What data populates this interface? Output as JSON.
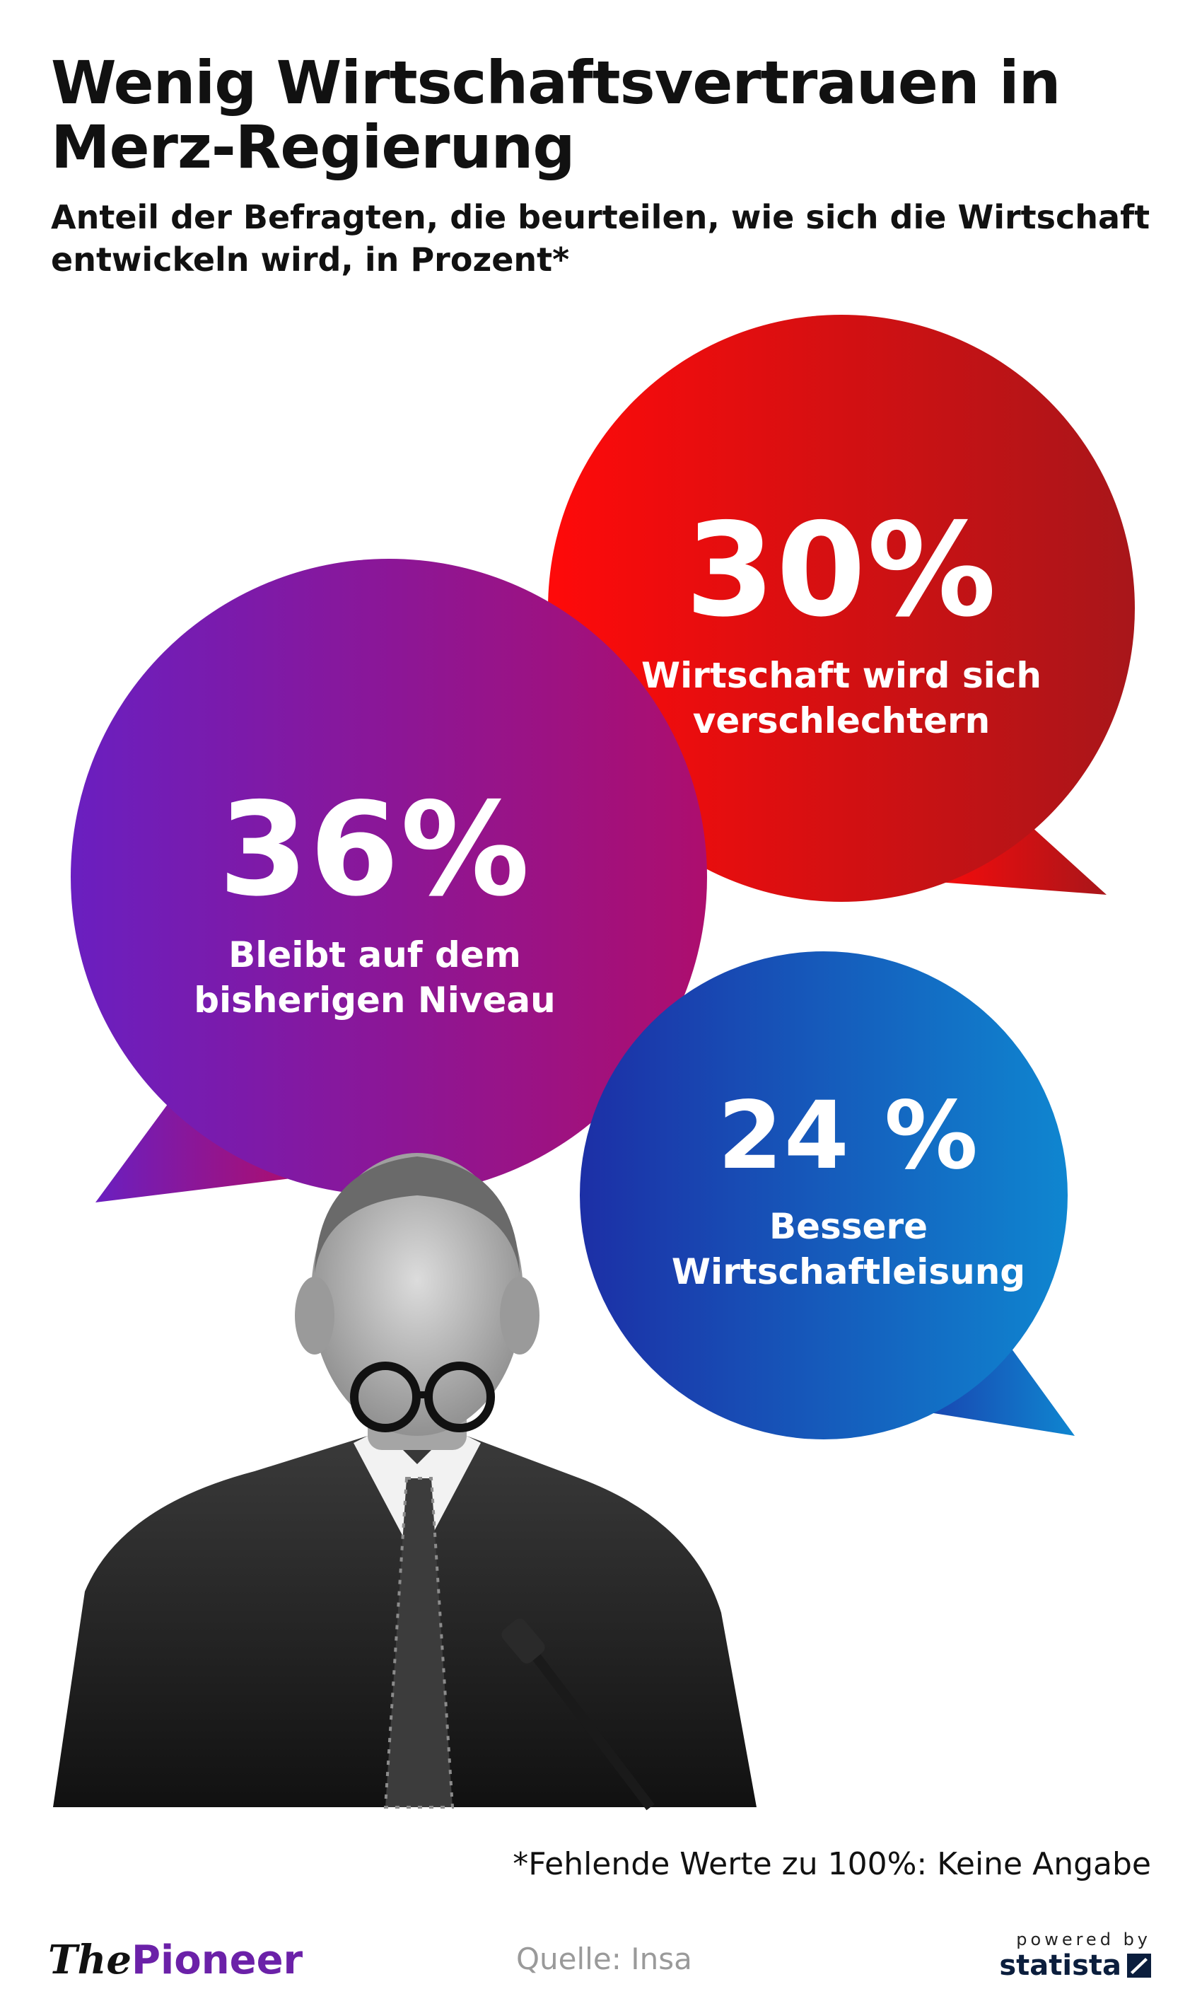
{
  "title": "Wenig Wirtschaftsvertrauen in Merz-Regierung",
  "subtitle": "Anteil der Befragten, die beurteilen, wie sich die Wirtschaft entwickeln wird, in Prozent*",
  "chart_data": {
    "type": "bubble",
    "categories": [
      "Wirtschaft wird sich verschlechtern",
      "Bleibt auf dem bisherigen Niveau",
      "Bessere Wirtschaftleisung"
    ],
    "values": [
      30,
      36,
      24
    ],
    "unit": "%",
    "bubbles": [
      {
        "pct_text": "30%",
        "label_line1": "Wirtschaft wird sich",
        "label_line2": "verschlechtern",
        "color_start": "#ff0a0a",
        "color_end": "#a8161a"
      },
      {
        "pct_text": "36%",
        "label_line1": "Bleibt auf dem",
        "label_line2": "bisherigen Niveau",
        "color_start": "#6a1fc0",
        "color_end": "#ad0e6e"
      },
      {
        "pct_text": "24 %",
        "label_line1": "Bessere",
        "label_line2": "Wirtschaftleisung",
        "color_start": "#1c2fa6",
        "color_end": "#0f86d0"
      }
    ]
  },
  "footnote": "*Fehlende Werte zu 100%: Keine Angabe",
  "brand": {
    "the": "The",
    "pioneer": "Pioneer"
  },
  "source": "Quelle: Insa",
  "statista": {
    "powered_by": "powered by",
    "name": "statista"
  }
}
